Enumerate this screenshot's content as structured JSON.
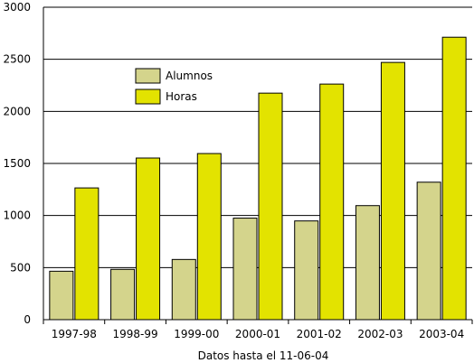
{
  "chart_data": {
    "type": "bar",
    "categories": [
      "1997-98",
      "1998-99",
      "1999-00",
      "2000-01",
      "2001-02",
      "2002-03",
      "2003-04"
    ],
    "series": [
      {
        "name": "Alumnos",
        "color": "#d4d48c",
        "values": [
          465,
          483,
          578,
          975,
          948,
          1095,
          1320
        ]
      },
      {
        "name": "Horas",
        "color": "#e3e300",
        "values": [
          1265,
          1552,
          1595,
          2175,
          2262,
          2470,
          2712
        ]
      }
    ],
    "yticks": [
      0,
      500,
      1000,
      1500,
      2000,
      2500,
      3000
    ],
    "ylim": [
      0,
      3000
    ],
    "grid": true,
    "legend_position": "top-left",
    "xlabel": "Datos hasta el 11-06-04",
    "ylabel": "",
    "title": ""
  }
}
